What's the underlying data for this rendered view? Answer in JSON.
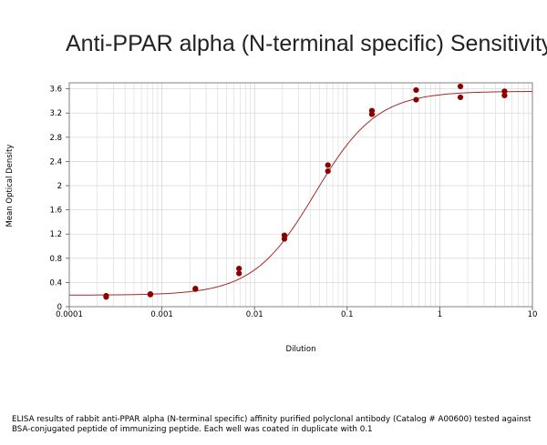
{
  "chart_data": {
    "type": "scatter",
    "title": "Anti-PPAR alpha (N-terminal specific) Sensitivity",
    "xlabel": "Dilution",
    "ylabel": "Mean Optical Density",
    "x_scale": "log",
    "xlim": [
      0.0001,
      10
    ],
    "ylim": [
      0,
      3.7
    ],
    "x_ticks": [
      "0.0001",
      "0.001",
      "0.01",
      "0.1",
      "1",
      "10"
    ],
    "y_ticks": [
      "0",
      "0.4",
      "0.8",
      "1.2",
      "1.6",
      "2",
      "2.4",
      "2.8",
      "3.2",
      "3.6"
    ],
    "grid": true,
    "legend": "none",
    "series": [
      {
        "points": [
          [
            0.00025,
            0.16
          ],
          [
            0.00025,
            0.18
          ],
          [
            0.00075,
            0.2
          ],
          [
            0.00075,
            0.21
          ],
          [
            0.0023,
            0.3
          ],
          [
            0.0023,
            0.29
          ],
          [
            0.0068,
            0.55
          ],
          [
            0.0068,
            0.63
          ],
          [
            0.021,
            1.12
          ],
          [
            0.021,
            1.18
          ],
          [
            0.062,
            2.24
          ],
          [
            0.062,
            2.34
          ],
          [
            0.185,
            3.18
          ],
          [
            0.185,
            3.24
          ],
          [
            0.555,
            3.42
          ],
          [
            0.555,
            3.58
          ],
          [
            1.67,
            3.46
          ],
          [
            1.67,
            3.64
          ],
          [
            5.0,
            3.49
          ],
          [
            5.0,
            3.56
          ]
        ],
        "fit": {
          "model": "4PL",
          "bottom": 0.19,
          "top": 3.56,
          "ec50": 0.045,
          "hill": 1.3
        }
      }
    ],
    "colors": {
      "points": "#8b0000",
      "fit_line": "#a52a2a",
      "grid": "#d9d9d9",
      "axis": "#808080"
    }
  },
  "caption": "ELISA results of rabbit anti-PPAR alpha (N-terminal specific) affinity purified polyclonal antibody (Catalog # A00600) tested against BSA-conjugated peptide of immunizing peptide. Each well was coated in duplicate with 0.1"
}
